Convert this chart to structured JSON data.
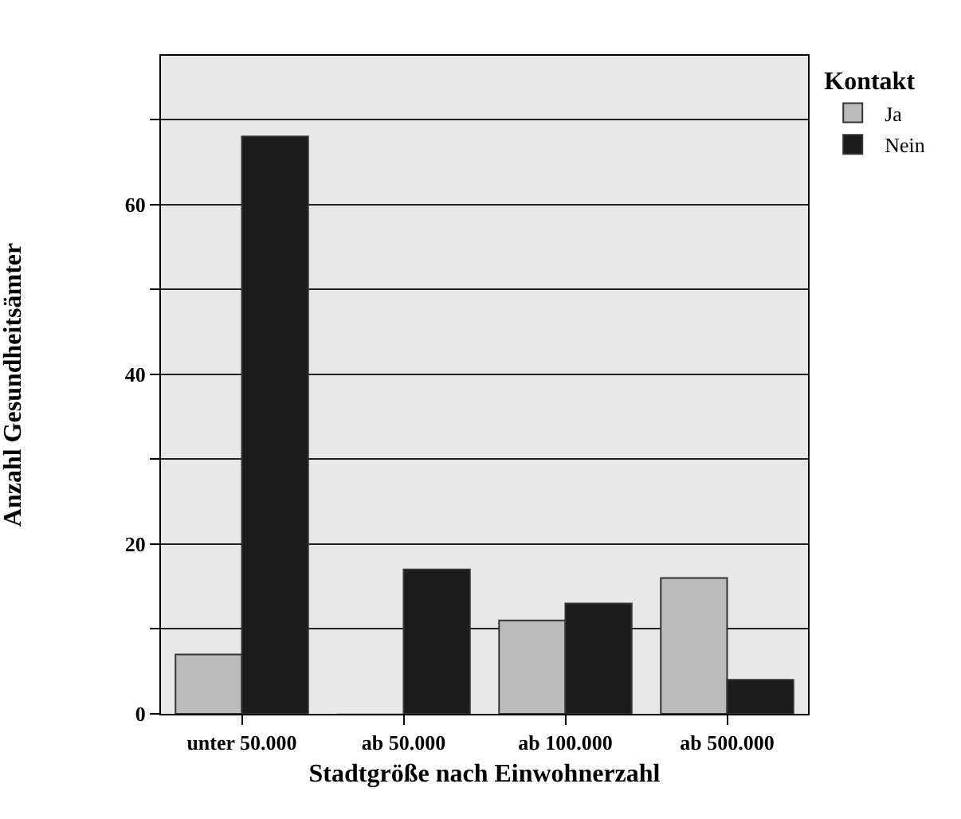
{
  "chart_data": {
    "type": "bar",
    "xlabel": "Stadtgröße nach Einwohnerzahl",
    "ylabel": "Anzahl Gesundheitsämter",
    "legend_title": "Kontakt",
    "categories": [
      "unter 50.000",
      "ab 50.000",
      "ab 100.000",
      "ab 500.000"
    ],
    "series": [
      {
        "name": "Ja",
        "color": "#bbbbbb",
        "values": [
          7,
          0,
          11,
          16
        ]
      },
      {
        "name": "Nein",
        "color": "#1b1b1b",
        "values": [
          68,
          17,
          13,
          4
        ]
      }
    ],
    "ylim": [
      0,
      77.5
    ],
    "yticks": [
      0,
      {
        "value": 10,
        "label": null
      },
      20,
      {
        "value": 30,
        "label": null
      },
      40,
      {
        "value": 50,
        "label": null
      },
      60,
      {
        "value": 70,
        "label": null
      }
    ],
    "grid": "y",
    "legend": "top right"
  }
}
